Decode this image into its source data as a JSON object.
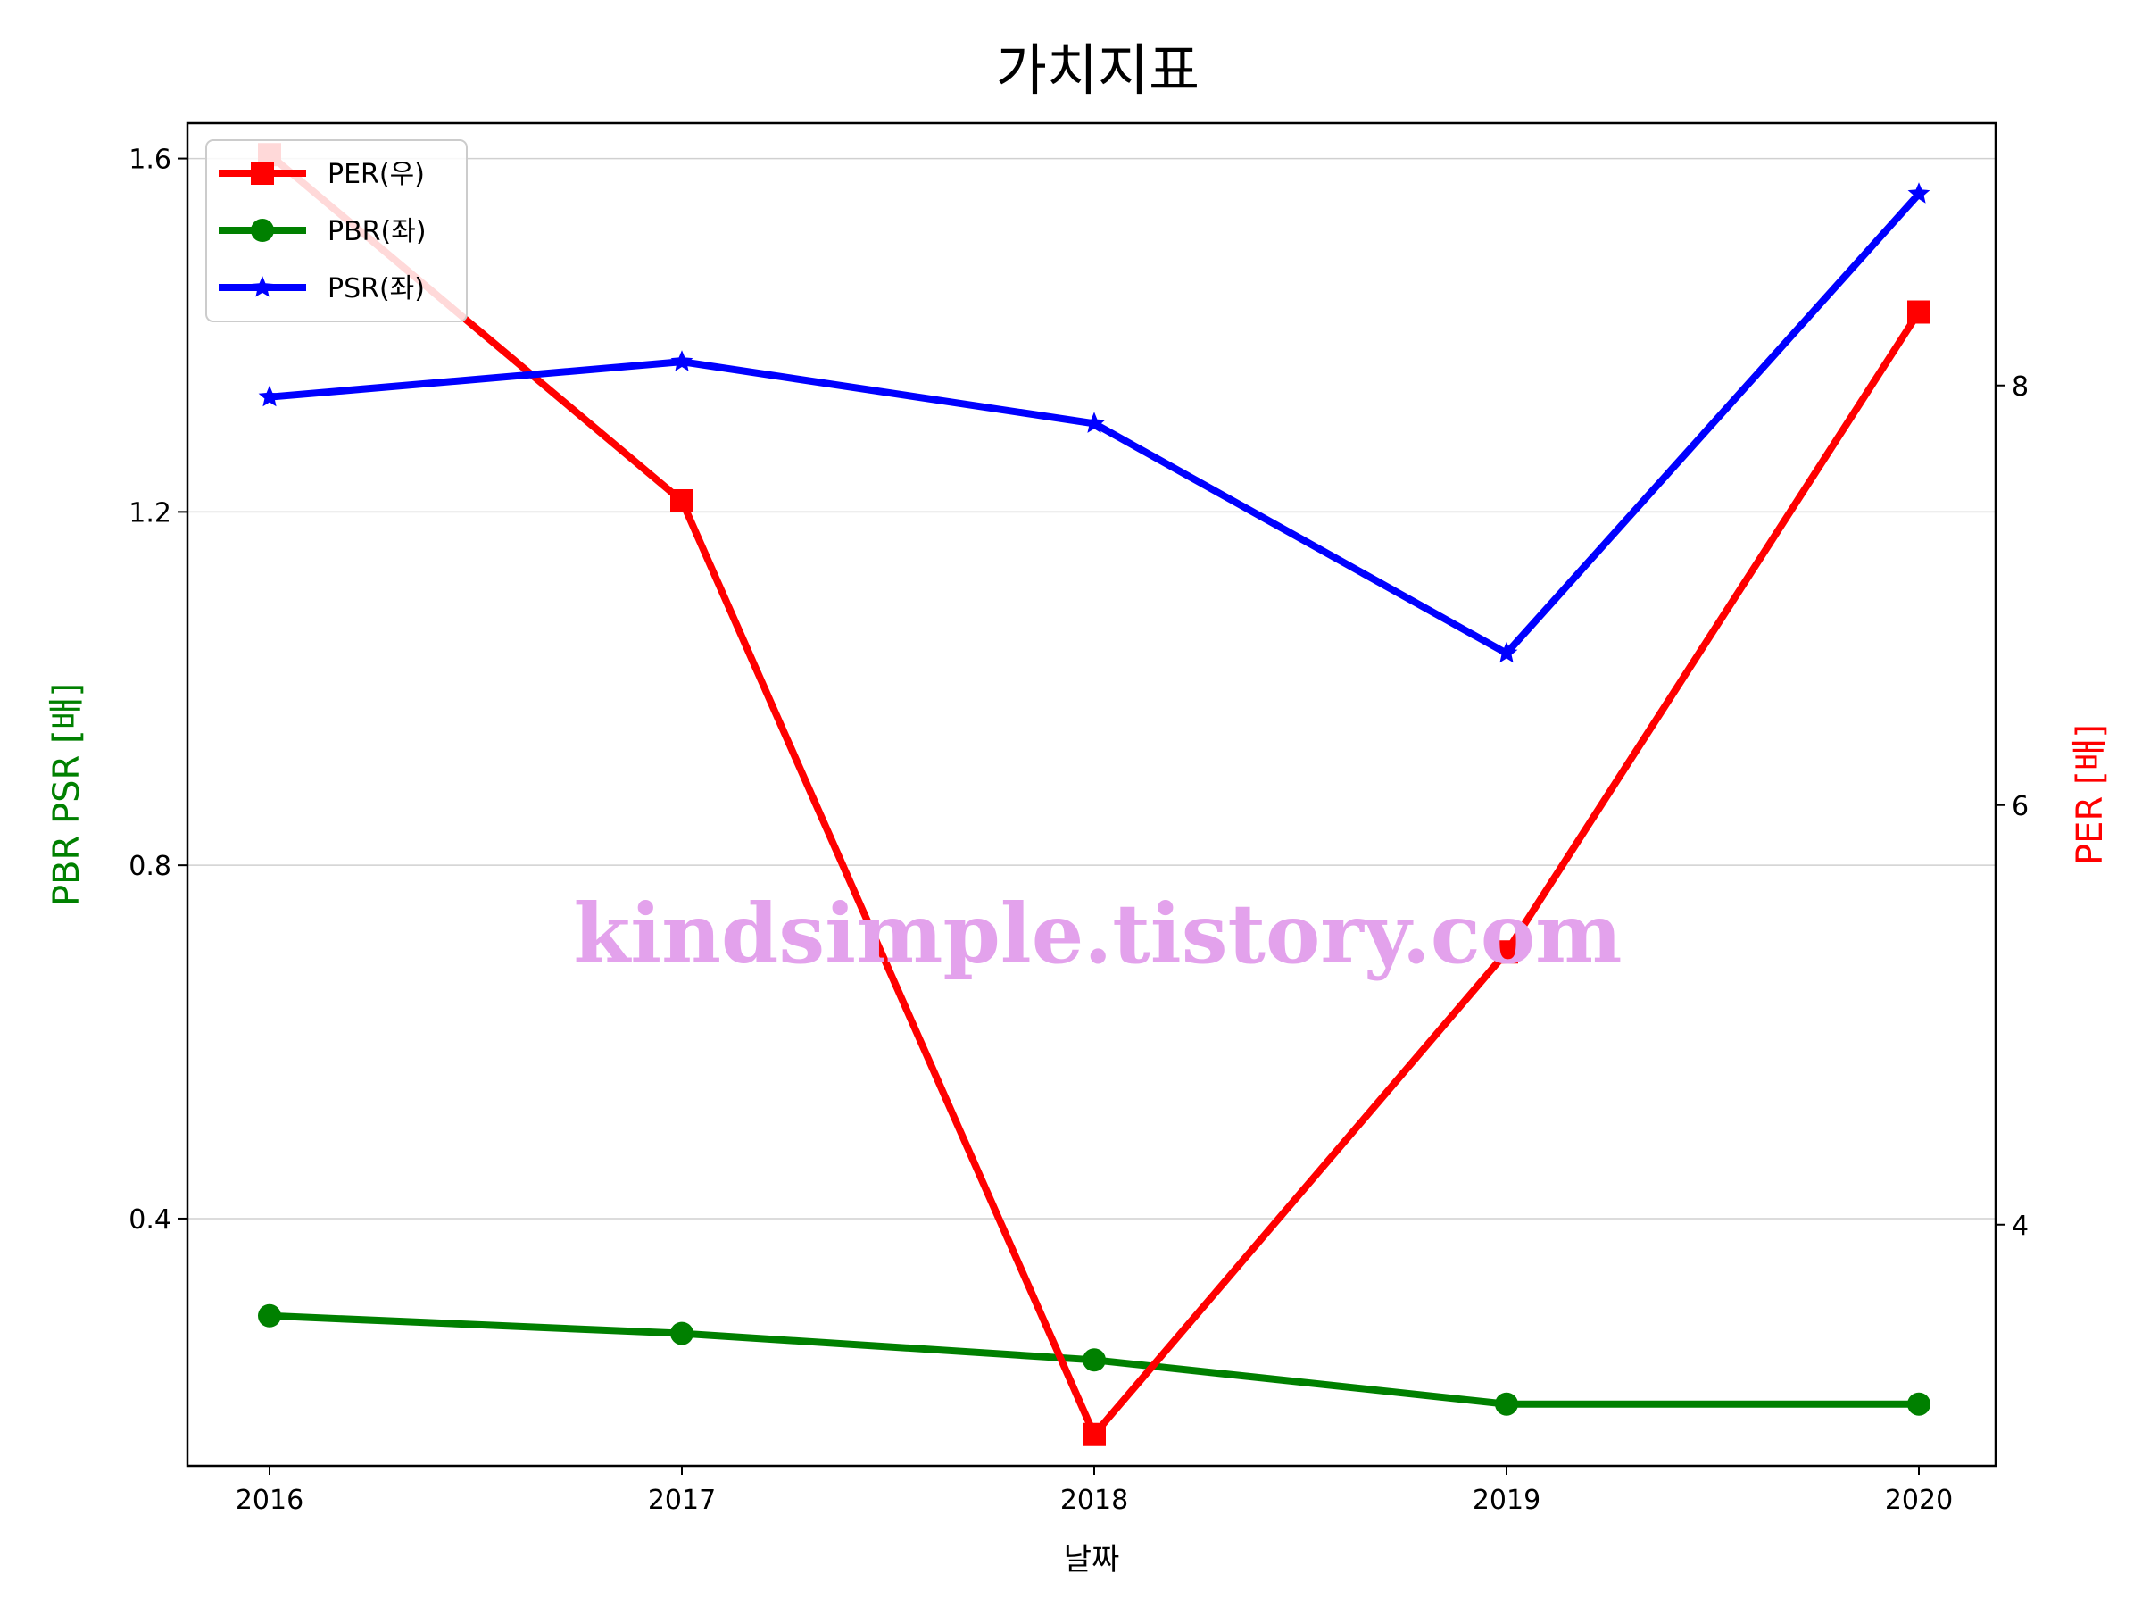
{
  "chart_data": {
    "type": "line",
    "title": "가치지표",
    "xlabel": "날짜",
    "ylabel_left": "PBR PSR [배]",
    "ylabel_right": "PER [배]",
    "categories": [
      "2016",
      "2017",
      "2018",
      "2019",
      "2020"
    ],
    "y_left_ticks": [
      "0.4",
      "0.8",
      "1.2",
      "1.6"
    ],
    "y_right_ticks": [
      "4",
      "6",
      "8"
    ],
    "ylim_left": [
      0.12,
      1.64
    ],
    "ylim_right": [
      2.85,
      9.25
    ],
    "grid": "horizontal",
    "legend_position": "top-left",
    "watermark": "kindsimple.tistory.com",
    "series": [
      {
        "name": "PER(우)",
        "axis": "right",
        "color": "#ff0000",
        "marker": "square",
        "values": [
          9.1,
          7.45,
          3.0,
          5.3,
          8.35
        ]
      },
      {
        "name": "PBR(좌)",
        "axis": "left",
        "color": "#008000",
        "marker": "circle",
        "values": [
          0.29,
          0.27,
          0.24,
          0.19,
          0.19
        ]
      },
      {
        "name": "PSR(좌)",
        "axis": "left",
        "color": "#0000ff",
        "marker": "star",
        "values": [
          1.33,
          1.37,
          1.3,
          1.04,
          1.56
        ]
      }
    ],
    "colors": {
      "ylabel_left": "#008000",
      "ylabel_right": "#ff0000",
      "watermark": "#e3a2ec"
    }
  }
}
